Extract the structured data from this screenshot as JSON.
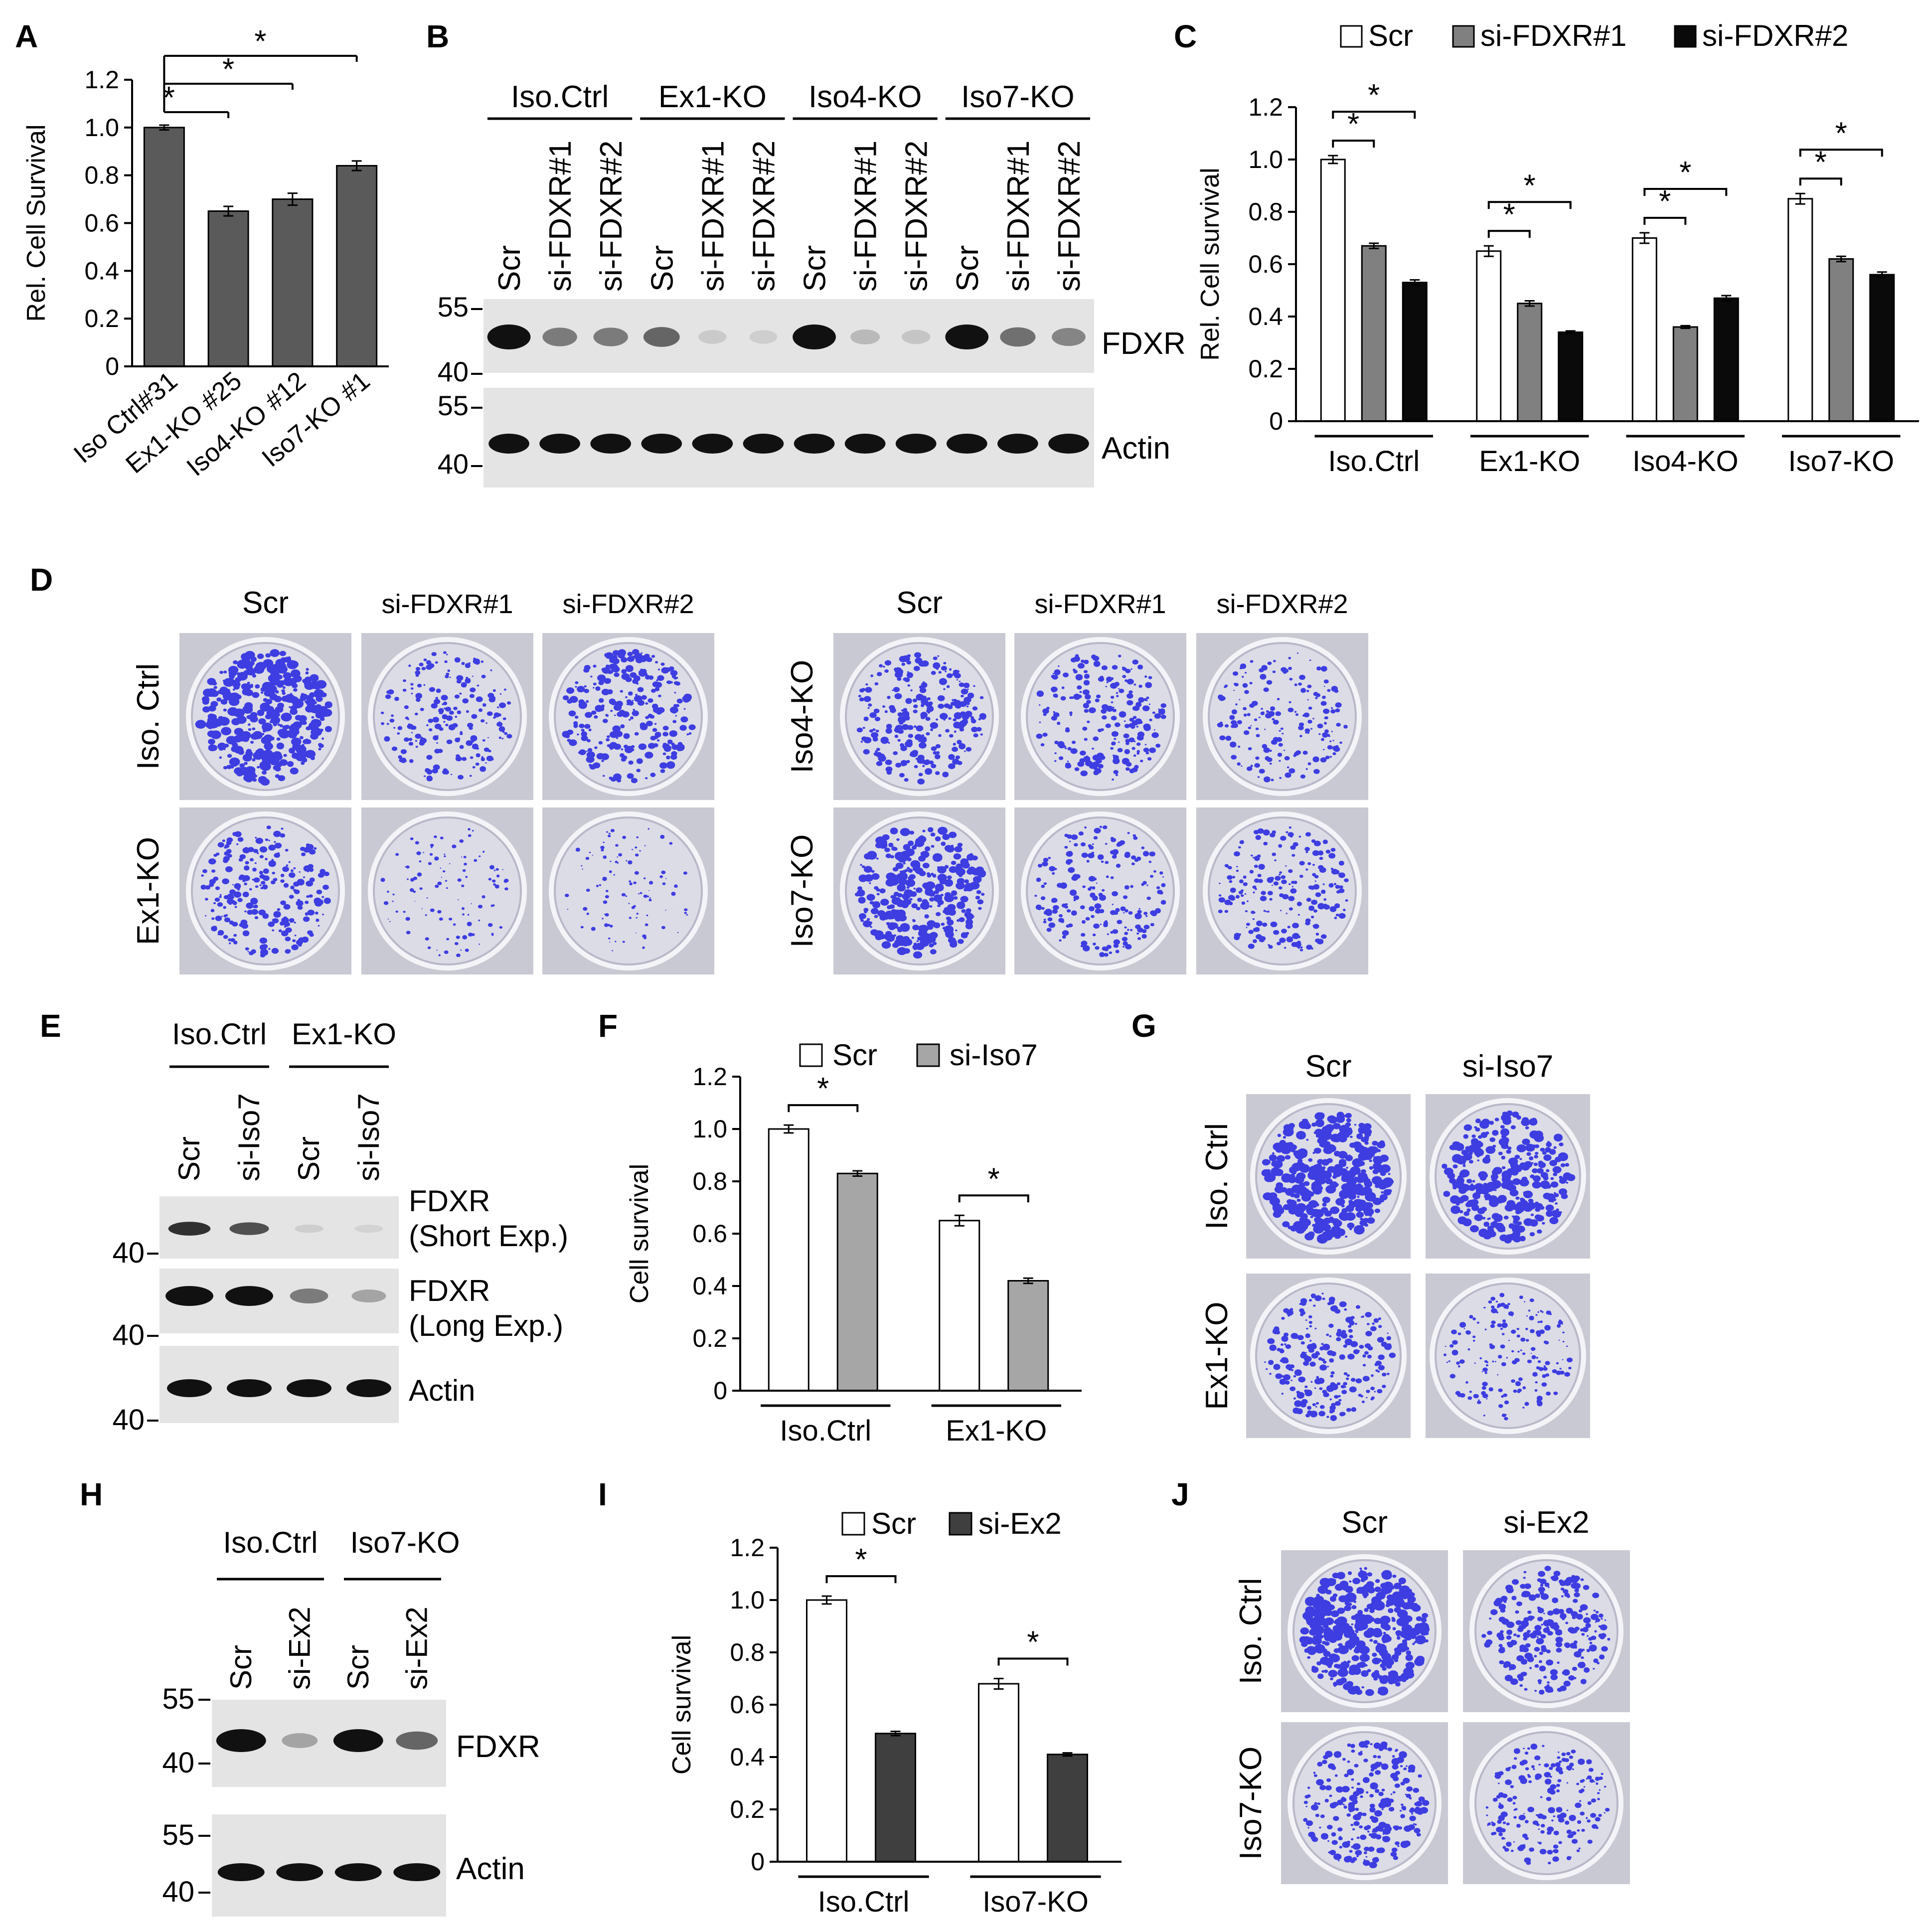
{
  "panel_labels": {
    "A": "A",
    "B": "B",
    "C": "C",
    "D": "D",
    "E": "E",
    "F": "F",
    "G": "G",
    "H": "H",
    "I": "I",
    "J": "J"
  },
  "chart_data": [
    {
      "id": "A",
      "type": "bar",
      "title": "",
      "ylabel": "Rel. Cell Survival",
      "xlabel": "",
      "ylim": [
        0,
        1.2
      ],
      "yticks": [
        "0",
        "0.2",
        "0.4",
        "0.6",
        "0.8",
        "1.0",
        "1.2"
      ],
      "categories": [
        "Iso Ctrl#31",
        "Ex1-KO #25",
        "Iso4-KO #12",
        "Iso7-KO #1"
      ],
      "series": [
        {
          "name": "",
          "values": [
            1.0,
            0.65,
            0.7,
            0.84
          ],
          "errors": [
            0.01,
            0.02,
            0.025,
            0.02
          ],
          "color": "#5a5a5a"
        }
      ],
      "significance": [
        {
          "from": 0,
          "to": 1,
          "label": "*"
        },
        {
          "from": 0,
          "to": 2,
          "label": "*"
        },
        {
          "from": 0,
          "to": 3,
          "label": "*"
        }
      ]
    },
    {
      "id": "C",
      "type": "bar",
      "title": "",
      "ylabel": "Rel. Cell survival",
      "xlabel": "",
      "ylim": [
        0,
        1.2
      ],
      "yticks": [
        "0",
        "0.2",
        "0.4",
        "0.6",
        "0.8",
        "1.0",
        "1.2"
      ],
      "categories": [
        "Iso.Ctrl",
        "Ex1-KO",
        "Iso4-KO",
        "Iso7-KO"
      ],
      "legend": "top",
      "series": [
        {
          "name": "Scr",
          "values": [
            1.0,
            0.65,
            0.7,
            0.85
          ],
          "errors": [
            0.015,
            0.02,
            0.02,
            0.02
          ],
          "color": "#ffffff"
        },
        {
          "name": "si-FDXR#1",
          "values": [
            0.67,
            0.45,
            0.36,
            0.62
          ],
          "errors": [
            0.01,
            0.01,
            0.005,
            0.01
          ],
          "color": "#808080"
        },
        {
          "name": "si-FDXR#2",
          "values": [
            0.53,
            0.34,
            0.47,
            0.56
          ],
          "errors": [
            0.01,
            0.005,
            0.01,
            0.01
          ],
          "color": "#0a0a0a"
        }
      ],
      "significance_label": "*"
    },
    {
      "id": "F",
      "type": "bar",
      "title": "",
      "ylabel": "Cell survival",
      "xlabel": "",
      "ylim": [
        0,
        1.2
      ],
      "yticks": [
        "0",
        "0.2",
        "0.4",
        "0.6",
        "0.8",
        "1.0",
        "1.2"
      ],
      "categories": [
        "Iso.Ctrl",
        "Ex1-KO"
      ],
      "legend": "top",
      "series": [
        {
          "name": "Scr",
          "values": [
            1.0,
            0.65
          ],
          "errors": [
            0.015,
            0.02
          ],
          "color": "#ffffff"
        },
        {
          "name": "si-Iso7",
          "values": [
            0.83,
            0.42
          ],
          "errors": [
            0.01,
            0.01
          ],
          "color": "#a6a6a6"
        }
      ],
      "significance_label": "*"
    },
    {
      "id": "I",
      "type": "bar",
      "title": "",
      "ylabel": "Cell survival",
      "xlabel": "",
      "ylim": [
        0,
        1.2
      ],
      "yticks": [
        "0",
        "0.2",
        "0.4",
        "0.6",
        "0.8",
        "1.0",
        "1.2"
      ],
      "categories": [
        "Iso.Ctrl",
        "Iso7-KO"
      ],
      "legend": "top",
      "series": [
        {
          "name": "Scr",
          "values": [
            1.0,
            0.68
          ],
          "errors": [
            0.015,
            0.02
          ],
          "color": "#ffffff"
        },
        {
          "name": "si-Ex2",
          "values": [
            0.49,
            0.41
          ],
          "errors": [
            0.008,
            0.006
          ],
          "color": "#3f3f3f"
        }
      ],
      "significance_label": "*"
    }
  ],
  "blot_B": {
    "groups": [
      "Iso.Ctrl",
      "Ex1-KO",
      "Iso4-KO",
      "Iso7-KO"
    ],
    "lanes": [
      "Scr",
      "si-FDXR#1",
      "si-FDXR#2",
      "Scr",
      "si-FDXR#1",
      "si-FDXR#2",
      "Scr",
      "si-FDXR#1",
      "si-FDXR#2",
      "Scr",
      "si-FDXR#1",
      "si-FDXR#2"
    ],
    "markers": [
      "55",
      "40",
      "55",
      "40"
    ],
    "fdxr_intensity": [
      1.0,
      0.5,
      0.5,
      0.6,
      0.12,
      0.1,
      1.0,
      0.2,
      0.15,
      1.0,
      0.55,
      0.45
    ],
    "actin_intensity": [
      1,
      1,
      1,
      1,
      1,
      1,
      1,
      1,
      1,
      1,
      1,
      1
    ],
    "bands": [
      "FDXR",
      "Actin"
    ]
  },
  "blot_E": {
    "groups": [
      "Iso.Ctrl",
      "Ex1-KO"
    ],
    "lanes": [
      "Scr",
      "si-Iso7",
      "Scr",
      "si-Iso7"
    ],
    "markers": [
      "40",
      "40",
      "40"
    ],
    "short_intensity": [
      0.85,
      0.7,
      0.1,
      0.06
    ],
    "long_intensity": [
      1.0,
      1.0,
      0.5,
      0.3
    ],
    "actin_intensity": [
      1,
      1,
      1,
      1
    ],
    "band1": "FDXR",
    "band1_sub": "(Short Exp.)",
    "band2": "FDXR",
    "band2_sub": "(Long Exp.)",
    "band3": "Actin"
  },
  "blot_H": {
    "groups": [
      "Iso.Ctrl",
      "Iso7-KO"
    ],
    "lanes": [
      "Scr",
      "si-Ex2",
      "Scr",
      "si-Ex2"
    ],
    "markers": [
      "55",
      "40",
      "55",
      "40"
    ],
    "fdxr_intensity": [
      1.0,
      0.3,
      1.0,
      0.6
    ],
    "actin_intensity": [
      1,
      1,
      1,
      1
    ],
    "bands": [
      "FDXR",
      "Actin"
    ]
  },
  "plates_D": {
    "columns": [
      "Scr",
      "si-FDXR#1",
      "si-FDXR#2"
    ],
    "left_rows": [
      "Iso. Ctrl",
      "Ex1-KO"
    ],
    "right_rows": [
      "Iso4-KO",
      "Iso7-KO"
    ],
    "left_density": [
      [
        1.0,
        0.45,
        0.65
      ],
      [
        0.55,
        0.15,
        0.12
      ]
    ],
    "right_density": [
      [
        0.6,
        0.5,
        0.4
      ],
      [
        0.85,
        0.45,
        0.45
      ]
    ]
  },
  "plates_G": {
    "columns": [
      "Scr",
      "si-Iso7"
    ],
    "rows": [
      "Iso. Ctrl",
      "Ex1-KO"
    ],
    "density": [
      [
        1.0,
        0.85
      ],
      [
        0.55,
        0.35
      ]
    ]
  },
  "plates_J": {
    "columns": [
      "Scr",
      "si-Ex2"
    ],
    "rows": [
      "Iso. Ctrl",
      "Iso7-KO"
    ],
    "density": [
      [
        1.0,
        0.6
      ],
      [
        0.6,
        0.45
      ]
    ]
  },
  "colors": {
    "stain": "#2b2be0",
    "plate_bg": "#dcdce6",
    "rim": "#ffffff",
    "blot_bg": "#e4e4e4",
    "band": "#111111"
  }
}
